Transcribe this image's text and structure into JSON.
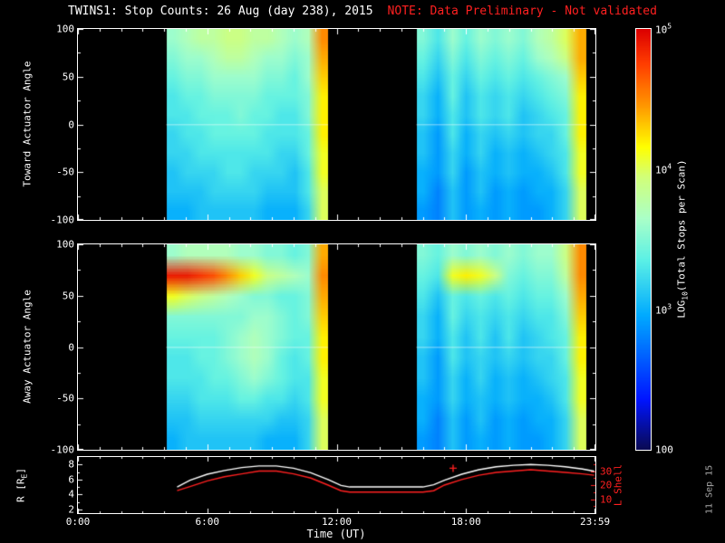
{
  "title": {
    "main": "TWINS1: Stop Counts: 26 Aug (day 238), 2015",
    "note": "NOTE: Data Preliminary - Not validated"
  },
  "watermark": "11 Sep 15",
  "colors": {
    "background": "#000000",
    "foreground": "#ffffff",
    "note_red": "#ff2020"
  },
  "x_axis": {
    "label": "Time (UT)",
    "hours_range": [
      0,
      24
    ],
    "ticks": [
      {
        "hour": 0,
        "label": "0:00"
      },
      {
        "hour": 6,
        "label": "6:00"
      },
      {
        "hour": 12,
        "label": "12:00"
      },
      {
        "hour": 18,
        "label": "18:00"
      },
      {
        "hour": 23.983,
        "label": "23:59"
      }
    ]
  },
  "colorbar": {
    "title_prefix": "LOG",
    "title_sub": "10",
    "title_suffix": "(Total Stops per Scan)",
    "min_log10": 2,
    "max_log10": 5,
    "tick_labels": [
      {
        "base": "10",
        "exp": "5",
        "log10": 5
      },
      {
        "base": "10",
        "exp": "4",
        "log10": 4
      },
      {
        "base": "10",
        "exp": "3",
        "log10": 3
      },
      {
        "base": "100",
        "exp": "",
        "log10": 2
      }
    ],
    "colormap": [
      [
        0.0,
        "#0a0a50"
      ],
      [
        0.12,
        "#0014ff"
      ],
      [
        0.32,
        "#00aaff"
      ],
      [
        0.45,
        "#5af0e6"
      ],
      [
        0.55,
        "#aaffc8"
      ],
      [
        0.65,
        "#d2ff78"
      ],
      [
        0.72,
        "#ffff00"
      ],
      [
        0.82,
        "#ff9600"
      ],
      [
        0.92,
        "#ff3c00"
      ],
      [
        1.0,
        "#dc0000"
      ]
    ]
  },
  "chart_data": [
    {
      "type": "heatmap",
      "name": "toward",
      "ylabel": "Toward Actuator Angle",
      "ylim": [
        -100,
        100
      ],
      "yticks": [
        100,
        50,
        0,
        -50,
        -100
      ],
      "x_hours_range": [
        0,
        24
      ],
      "value_scale": "log10 total stops per scan",
      "value_range_log10": [
        2,
        5
      ],
      "blocks": [
        {
          "t_start": 4.1,
          "t_end": 11.6,
          "grid_log10": [
            [
              3.6,
              3.7,
              3.8,
              3.8,
              3.9,
              3.9,
              3.8,
              3.8,
              3.7,
              3.6,
              3.7,
              4.5
            ],
            [
              3.5,
              3.6,
              3.6,
              3.7,
              3.8,
              3.8,
              3.7,
              3.6,
              3.6,
              3.5,
              3.6,
              4.4
            ],
            [
              3.4,
              3.5,
              3.5,
              3.6,
              3.6,
              3.6,
              3.6,
              3.5,
              3.5,
              3.4,
              3.6,
              4.3
            ],
            [
              3.3,
              3.4,
              3.4,
              3.5,
              3.5,
              3.5,
              3.5,
              3.4,
              3.4,
              3.4,
              3.5,
              4.2
            ],
            [
              3.3,
              3.3,
              3.4,
              3.4,
              3.4,
              3.5,
              3.4,
              3.4,
              3.3,
              3.3,
              3.5,
              4.2
            ],
            [
              3.2,
              3.3,
              3.3,
              3.4,
              3.4,
              3.4,
              3.4,
              3.3,
              3.3,
              3.3,
              3.4,
              4.2
            ],
            [
              3.2,
              3.2,
              3.3,
              3.3,
              3.3,
              3.3,
              3.3,
              3.3,
              3.2,
              3.2,
              3.4,
              4.1
            ],
            [
              3.1,
              3.2,
              3.2,
              3.2,
              3.3,
              3.3,
              3.2,
              3.2,
              3.2,
              3.1,
              3.3,
              4.1
            ],
            [
              3.1,
              3.1,
              3.1,
              3.2,
              3.2,
              3.2,
              3.2,
              3.1,
              3.1,
              3.1,
              3.3,
              4.0
            ],
            [
              3.0,
              3.0,
              3.1,
              3.1,
              3.1,
              3.1,
              3.1,
              3.0,
              3.0,
              3.0,
              3.2,
              4.0
            ]
          ]
        },
        {
          "t_start": 15.7,
          "t_end": 23.6,
          "grid_log10": [
            [
              3.5,
              3.3,
              3.6,
              3.4,
              3.6,
              3.5,
              3.6,
              3.5,
              3.7,
              3.8,
              4.0,
              4.4
            ],
            [
              3.4,
              3.2,
              3.5,
              3.3,
              3.5,
              3.4,
              3.5,
              3.4,
              3.6,
              3.7,
              3.9,
              4.4
            ],
            [
              3.3,
              3.1,
              3.4,
              3.2,
              3.4,
              3.3,
              3.4,
              3.3,
              3.4,
              3.5,
              3.6,
              4.3
            ],
            [
              3.2,
              3.0,
              3.4,
              3.1,
              3.3,
              3.2,
              3.3,
              3.2,
              3.3,
              3.4,
              3.5,
              4.2
            ],
            [
              3.2,
              3.0,
              3.3,
              3.1,
              3.3,
              3.2,
              3.3,
              3.1,
              3.2,
              3.3,
              3.4,
              4.2
            ],
            [
              3.1,
              2.9,
              3.3,
              3.0,
              3.2,
              3.1,
              3.2,
              3.1,
              3.2,
              3.2,
              3.4,
              4.2
            ],
            [
              3.1,
              2.9,
              3.2,
              3.0,
              3.2,
              3.0,
              3.1,
              3.0,
              3.1,
              3.2,
              3.3,
              4.1
            ],
            [
              3.0,
              2.9,
              3.2,
              2.9,
              3.1,
              3.0,
              3.1,
              3.0,
              3.0,
              3.1,
              3.3,
              4.1
            ],
            [
              3.0,
              2.8,
              3.1,
              2.9,
              3.1,
              2.9,
              3.0,
              2.9,
              3.0,
              3.0,
              3.2,
              4.0
            ],
            [
              2.9,
              2.8,
              3.1,
              2.9,
              3.0,
              2.9,
              3.0,
              2.9,
              2.9,
              3.0,
              3.2,
              4.0
            ]
          ]
        }
      ]
    },
    {
      "type": "heatmap",
      "name": "away",
      "ylabel": "Away Actuator Angle",
      "ylim": [
        -100,
        100
      ],
      "yticks": [
        100,
        50,
        0,
        -50,
        -100
      ],
      "x_hours_range": [
        0,
        24
      ],
      "value_scale": "log10 total stops per scan",
      "value_range_log10": [
        2,
        5
      ],
      "blocks": [
        {
          "t_start": 4.1,
          "t_end": 11.6,
          "grid_log10": [
            [
              3.6,
              3.7,
              3.7,
              3.7,
              3.7,
              3.6,
              3.6,
              3.5,
              3.5,
              3.4,
              3.5,
              4.4
            ],
            [
              4.9,
              4.9,
              4.8,
              4.7,
              4.5,
              4.3,
              4.1,
              3.9,
              3.8,
              3.7,
              3.6,
              4.5
            ],
            [
              4.1,
              4.0,
              3.9,
              3.8,
              3.7,
              3.6,
              3.5,
              3.5,
              3.4,
              3.4,
              3.5,
              4.4
            ],
            [
              3.5,
              3.5,
              3.5,
              3.5,
              3.5,
              3.5,
              3.6,
              3.6,
              3.5,
              3.4,
              3.5,
              4.3
            ],
            [
              3.4,
              3.4,
              3.4,
              3.4,
              3.5,
              3.6,
              3.7,
              3.6,
              3.5,
              3.4,
              3.4,
              4.2
            ],
            [
              3.3,
              3.3,
              3.4,
              3.4,
              3.5,
              3.6,
              3.7,
              3.6,
              3.4,
              3.3,
              3.4,
              4.2
            ],
            [
              3.3,
              3.3,
              3.3,
              3.4,
              3.4,
              3.5,
              3.6,
              3.5,
              3.4,
              3.3,
              3.3,
              4.1
            ],
            [
              3.2,
              3.2,
              3.3,
              3.3,
              3.3,
              3.4,
              3.4,
              3.3,
              3.3,
              3.2,
              3.3,
              4.1
            ],
            [
              3.1,
              3.1,
              3.2,
              3.2,
              3.2,
              3.2,
              3.2,
              3.2,
              3.1,
              3.1,
              3.2,
              4.0
            ],
            [
              3.0,
              3.1,
              3.1,
              3.1,
              3.1,
              3.1,
              3.1,
              3.0,
              3.0,
              3.0,
              3.2,
              4.0
            ]
          ]
        },
        {
          "t_start": 15.7,
          "t_end": 23.6,
          "grid_log10": [
            [
              3.5,
              3.4,
              3.6,
              3.5,
              3.6,
              3.5,
              3.6,
              3.5,
              3.6,
              3.6,
              3.9,
              4.5
            ],
            [
              3.4,
              3.3,
              4.1,
              4.2,
              4.1,
              3.9,
              3.5,
              3.4,
              3.5,
              3.5,
              3.8,
              4.5
            ],
            [
              3.3,
              3.1,
              3.4,
              3.3,
              3.4,
              3.3,
              3.4,
              3.3,
              3.4,
              3.4,
              3.6,
              4.4
            ],
            [
              3.2,
              3.0,
              3.4,
              3.2,
              3.3,
              3.2,
              3.3,
              3.2,
              3.3,
              3.3,
              3.5,
              4.3
            ],
            [
              3.2,
              3.0,
              3.3,
              3.1,
              3.3,
              3.1,
              3.3,
              3.1,
              3.2,
              3.3,
              3.4,
              4.2
            ],
            [
              3.1,
              2.9,
              3.3,
              3.1,
              3.2,
              3.1,
              3.2,
              3.1,
              3.2,
              3.2,
              3.4,
              4.2
            ],
            [
              3.1,
              2.9,
              3.2,
              3.0,
              3.2,
              3.0,
              3.1,
              3.0,
              3.1,
              3.2,
              3.3,
              4.1
            ],
            [
              3.0,
              2.9,
              3.2,
              3.0,
              3.1,
              3.0,
              3.1,
              3.0,
              3.0,
              3.1,
              3.3,
              4.1
            ],
            [
              3.0,
              2.8,
              3.1,
              2.9,
              3.1,
              2.9,
              3.0,
              2.9,
              3.0,
              3.0,
              3.2,
              4.0
            ],
            [
              2.9,
              2.8,
              3.1,
              2.9,
              3.0,
              2.9,
              3.0,
              2.9,
              2.9,
              3.0,
              3.2,
              4.0
            ]
          ]
        }
      ]
    },
    {
      "type": "line",
      "name": "orbit",
      "ylabel_left_prefix": "R [R",
      "ylabel_left_sub": "E",
      "ylabel_left_suffix": "]",
      "ylabel_right": "L Shell",
      "ylim_left": [
        1.5,
        9
      ],
      "yticks_left": [
        2,
        4,
        6,
        8
      ],
      "ylim_right": [
        0,
        40
      ],
      "yticks_right": [
        10,
        20,
        30
      ],
      "series": [
        {
          "name": "R",
          "axis": "left",
          "color": "#ffffff",
          "points": [
            [
              4.6,
              5.0
            ],
            [
              5.2,
              5.9
            ],
            [
              6.0,
              6.7
            ],
            [
              6.8,
              7.2
            ],
            [
              7.6,
              7.6
            ],
            [
              8.4,
              7.8
            ],
            [
              9.2,
              7.8
            ],
            [
              10.0,
              7.5
            ],
            [
              10.8,
              6.9
            ],
            [
              11.6,
              6.0
            ],
            [
              12.2,
              5.2
            ],
            [
              12.6,
              5.0
            ],
            [
              16.0,
              5.0
            ],
            [
              16.5,
              5.3
            ],
            [
              17.0,
              5.9
            ],
            [
              17.8,
              6.7
            ],
            [
              18.6,
              7.3
            ],
            [
              19.4,
              7.7
            ],
            [
              20.2,
              7.9
            ],
            [
              21.0,
              8.0
            ],
            [
              21.8,
              7.9
            ],
            [
              22.6,
              7.7
            ],
            [
              23.4,
              7.4
            ],
            [
              23.95,
              7.1
            ]
          ]
        },
        {
          "name": "L Shell",
          "axis": "right",
          "color": "#ff2020",
          "points": [
            [
              4.6,
              16
            ],
            [
              5.2,
              19
            ],
            [
              6.0,
              23
            ],
            [
              6.8,
              26
            ],
            [
              7.6,
              28
            ],
            [
              8.4,
              30
            ],
            [
              9.2,
              30
            ],
            [
              10.0,
              28
            ],
            [
              10.8,
              25
            ],
            [
              11.6,
              20
            ],
            [
              12.2,
              16
            ],
            [
              12.6,
              15
            ],
            [
              16.0,
              15
            ],
            [
              16.5,
              16
            ],
            [
              17.0,
              20
            ],
            [
              17.8,
              24
            ],
            [
              18.6,
              27
            ],
            [
              19.4,
              29
            ],
            [
              20.2,
              30
            ],
            [
              21.0,
              31
            ],
            [
              21.8,
              30
            ],
            [
              22.6,
              29
            ],
            [
              23.4,
              28
            ],
            [
              23.95,
              27
            ]
          ]
        }
      ],
      "markers": [
        {
          "t": 17.4,
          "value": 32,
          "axis": "right",
          "symbol": "+",
          "color": "#ff2020"
        }
      ]
    }
  ]
}
